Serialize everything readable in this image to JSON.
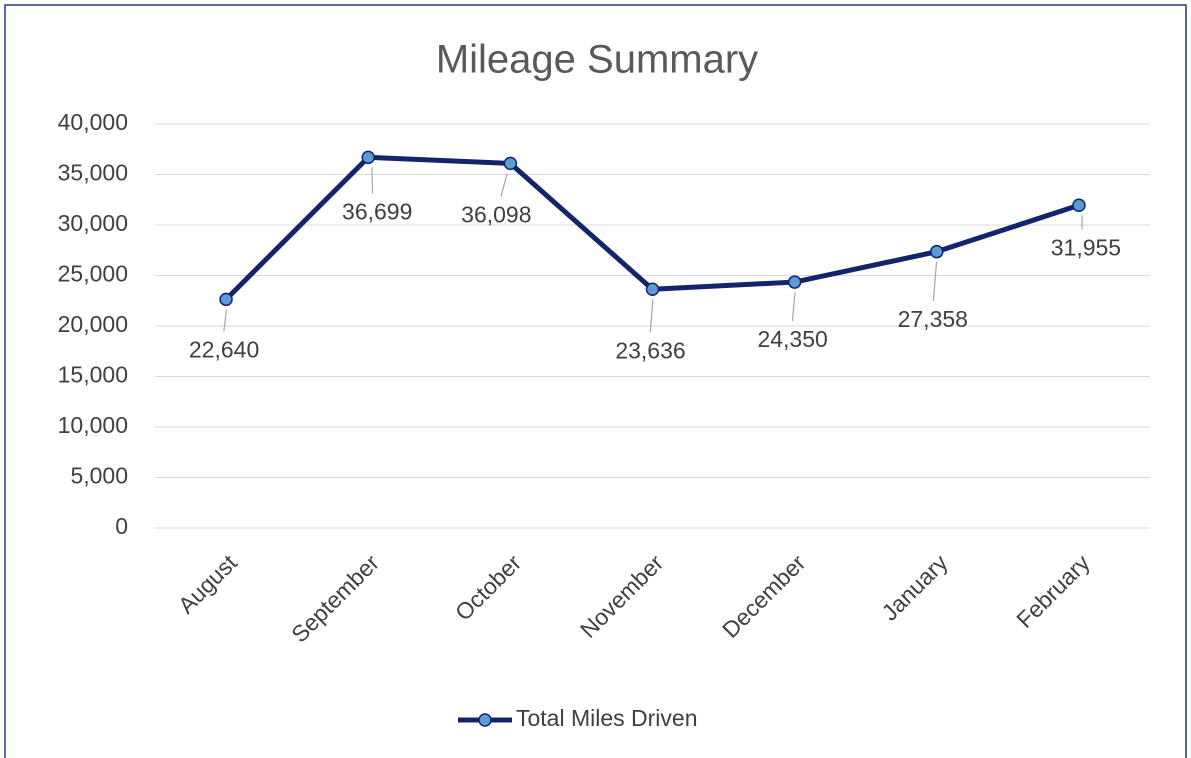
{
  "chart_data": {
    "type": "line",
    "title": "Mileage Summary",
    "categories": [
      "August",
      "September",
      "October",
      "November",
      "December",
      "January",
      "February"
    ],
    "series": [
      {
        "name": "Total Miles Driven",
        "color": "#14246b",
        "marker_color": "#5b9bd5",
        "values": [
          22640,
          36699,
          36098,
          23636,
          24350,
          27358,
          31955
        ],
        "value_labels": [
          "22,640",
          "36,699",
          "36,098",
          "23,636",
          "24,350",
          "27,358",
          "31,955"
        ]
      }
    ],
    "ylim": [
      0,
      40000
    ],
    "yticks": [
      0,
      {
        "value": 5000,
        "label": "5,000"
      },
      {
        "value": 10000,
        "label": "10,000"
      },
      {
        "value": 15000,
        "label": "15,000"
      },
      {
        "value": 20000,
        "label": "20,000"
      },
      {
        "value": 25000,
        "label": "25,000"
      },
      {
        "value": 30000,
        "label": "30,000"
      },
      {
        "value": 35000,
        "label": "35,000"
      },
      {
        "value": 40000,
        "label": "40,000"
      }
    ],
    "grid": true,
    "legend": "bottom"
  }
}
